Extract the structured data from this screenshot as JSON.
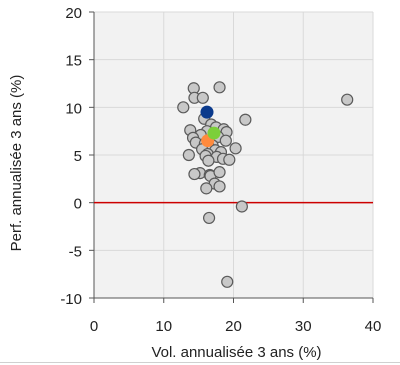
{
  "chart_data": {
    "type": "scatter",
    "title": "",
    "xlabel": "Vol. annualisée 3 ans (%)",
    "ylabel": "Perf. annualisée 3 ans (%)",
    "xlim": [
      0,
      40
    ],
    "ylim": [
      -10,
      20
    ],
    "x_ticks": [
      0,
      10,
      20,
      30,
      40
    ],
    "y_ticks": [
      -10,
      -5,
      0,
      5,
      10,
      15,
      20
    ],
    "x_tick_labels": [
      "0",
      "10",
      "20",
      "30",
      "40"
    ],
    "y_tick_labels": [
      "-10",
      "-5",
      "0",
      "5",
      "10",
      "15",
      "20"
    ],
    "grid": true,
    "legend": "none",
    "reference_line": {
      "y": 0,
      "color": "#cc0000"
    },
    "colors": {
      "plot_background": "#f2f2f2",
      "grid": "#d9d9d9",
      "peer_point": "#c8c8c8",
      "peer_point_stroke": "#5a5a5a"
    },
    "series": [
      {
        "color": "#c8c8c8",
        "points": [
          [
            12.8,
            10.0
          ],
          [
            14.3,
            12.0
          ],
          [
            14.4,
            11.0
          ],
          [
            15.6,
            11.0
          ],
          [
            18.0,
            12.1
          ],
          [
            36.3,
            10.8
          ],
          [
            21.7,
            8.7
          ],
          [
            15.8,
            8.8
          ],
          [
            16.8,
            8.2
          ],
          [
            17.5,
            7.9
          ],
          [
            18.6,
            7.7
          ],
          [
            13.8,
            7.6
          ],
          [
            16.2,
            7.5
          ],
          [
            19.0,
            7.4
          ],
          [
            15.3,
            7.1
          ],
          [
            14.2,
            6.8
          ],
          [
            17.8,
            6.9
          ],
          [
            18.9,
            6.5
          ],
          [
            14.6,
            6.3
          ],
          [
            15.9,
            6.2
          ],
          [
            17.0,
            6.0
          ],
          [
            16.5,
            5.8
          ],
          [
            20.3,
            5.7
          ],
          [
            15.5,
            5.6
          ],
          [
            17.4,
            5.5
          ],
          [
            18.2,
            5.3
          ],
          [
            16.3,
            5.1
          ],
          [
            13.6,
            5.0
          ],
          [
            16.0,
            4.9
          ],
          [
            17.6,
            4.8
          ],
          [
            18.5,
            4.6
          ],
          [
            19.4,
            4.5
          ],
          [
            16.4,
            4.4
          ],
          [
            15.2,
            3.1
          ],
          [
            14.4,
            3.0
          ],
          [
            16.6,
            2.9
          ],
          [
            16.7,
            2.8
          ],
          [
            18.0,
            3.2
          ],
          [
            17.3,
            2.0
          ],
          [
            16.1,
            1.5
          ],
          [
            18.0,
            1.7
          ],
          [
            16.5,
            -1.6
          ],
          [
            21.2,
            -0.4
          ],
          [
            19.1,
            -8.3
          ]
        ]
      },
      {
        "color": "#ff8a3d",
        "points": [
          [
            16.3,
            6.5
          ]
        ]
      },
      {
        "color": "#7ccf3a",
        "points": [
          [
            17.2,
            7.3
          ]
        ]
      },
      {
        "color": "#0b3a8c",
        "points": [
          [
            16.2,
            9.5
          ]
        ]
      }
    ]
  }
}
